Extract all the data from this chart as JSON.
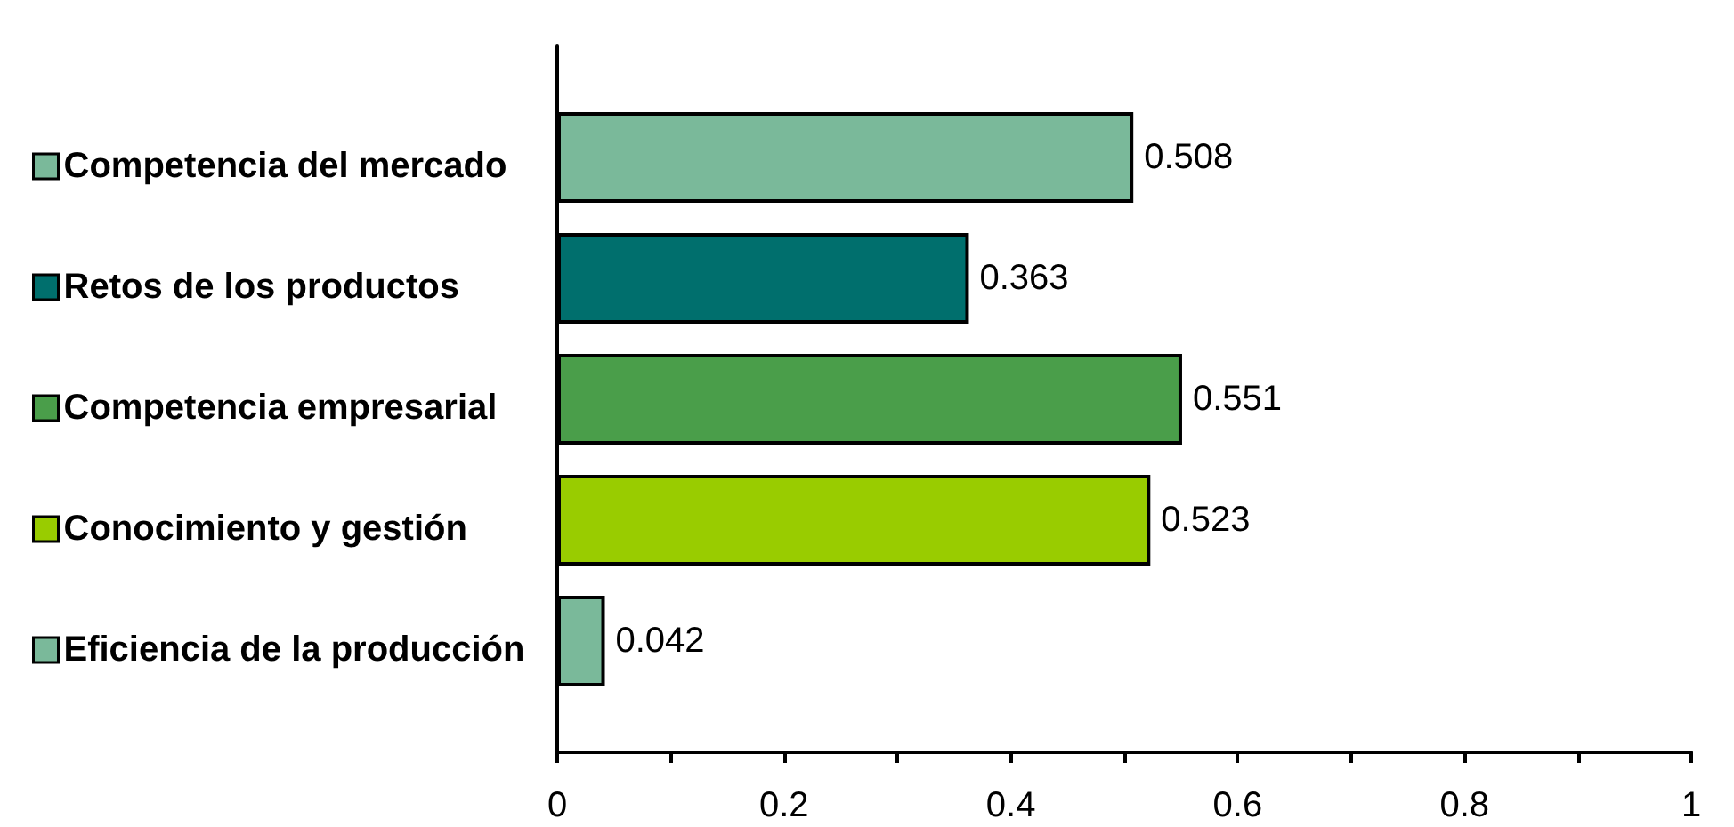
{
  "chart_data": {
    "type": "bar",
    "orientation": "horizontal",
    "categories": [
      null
    ],
    "series": [
      {
        "name": "Competencia del mercado",
        "color": "#7ab99a",
        "values": [
          0.508
        ]
      },
      {
        "name": "Retos de los productos",
        "color": "#006f6d",
        "values": [
          0.363
        ]
      },
      {
        "name": "Competencia empresarial",
        "color": "#4a9e4a",
        "values": [
          0.551
        ]
      },
      {
        "name": "Conocimiento y gestión",
        "color": "#99cc00",
        "values": [
          0.523
        ]
      },
      {
        "name": "Eficiencia de la producción",
        "color": "#7ab99a",
        "values": [
          0.042
        ]
      }
    ],
    "xlim": [
      0,
      1
    ],
    "xticks": [
      0,
      {
        "value": 0.1,
        "label": null
      },
      0.2,
      {
        "value": 0.3,
        "label": null
      },
      0.4,
      {
        "value": 0.5,
        "label": null
      },
      0.6,
      {
        "value": 0.7,
        "label": null
      },
      0.8,
      {
        "value": 0.9,
        "label": null
      },
      1
    ],
    "tick_labels": "x",
    "grid": false,
    "legend": "left",
    "data_labels": true
  }
}
